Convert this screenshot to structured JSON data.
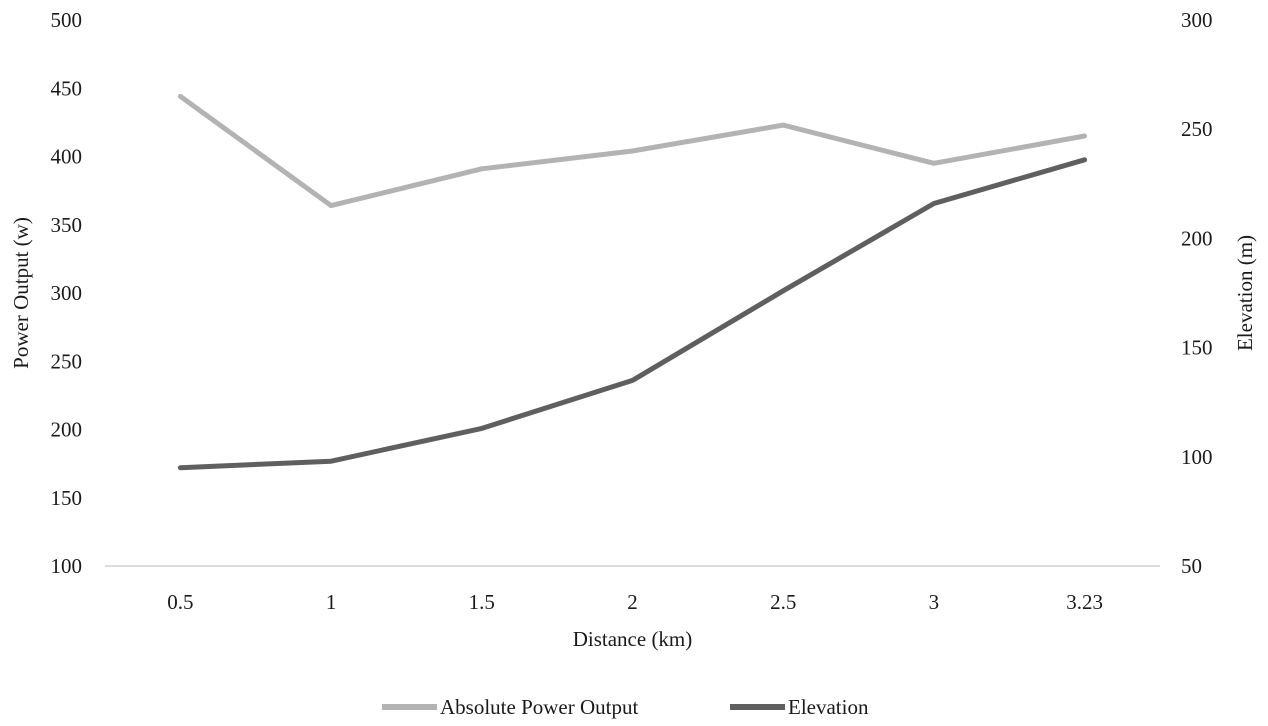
{
  "chart_data": {
    "type": "line",
    "categories": [
      "0.5",
      "1",
      "1.5",
      "2",
      "2.5",
      "3",
      "3.23"
    ],
    "series": [
      {
        "name": "Absolute Power Output",
        "axis": "left",
        "color": "#b3b3b3",
        "values": [
          444,
          364,
          391,
          404,
          423,
          395,
          415
        ]
      },
      {
        "name": "Elevation",
        "axis": "right",
        "color": "#5f5f5f",
        "values": [
          95,
          98,
          113,
          135,
          176,
          216,
          236
        ]
      }
    ],
    "xlabel": "Distance (km)",
    "ylabel": "Power Output (w)",
    "y2label": "Elevation (m)",
    "ylim": [
      100,
      500
    ],
    "y2lim": [
      50,
      300
    ],
    "yticks": [
      "100",
      "150",
      "200",
      "250",
      "300",
      "350",
      "400",
      "450",
      "500"
    ],
    "y2ticks": [
      "50",
      "100",
      "150",
      "200",
      "250",
      "300"
    ],
    "grid": false,
    "legend_position": "bottom"
  }
}
